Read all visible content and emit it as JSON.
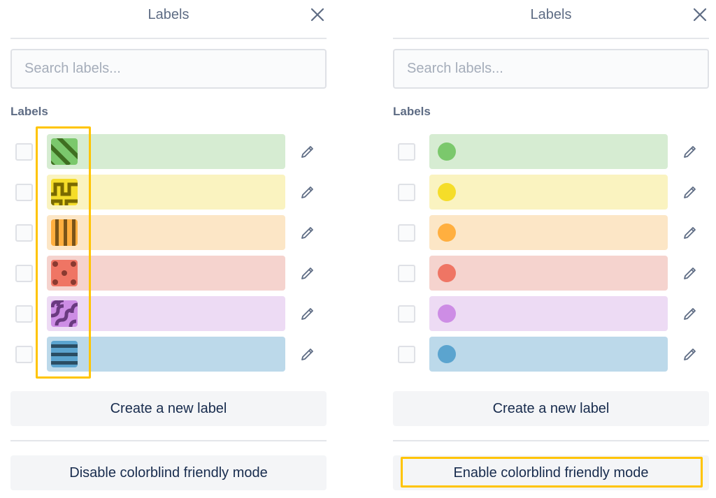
{
  "panels": [
    {
      "title": "Labels",
      "search_placeholder": "Search labels...",
      "section_heading": "Labels",
      "create_label": "Create a new label",
      "colorblind_toggle": "Disable colorblind friendly mode",
      "colorblind_mode": true,
      "highlight": "label-swatches"
    },
    {
      "title": "Labels",
      "search_placeholder": "Search labels...",
      "section_heading": "Labels",
      "create_label": "Create a new label",
      "colorblind_toggle": "Enable colorblind friendly mode",
      "colorblind_mode": false,
      "highlight": "colorblind-toggle-button"
    }
  ],
  "labels": [
    {
      "color": "green",
      "swatch": "#7bc86c",
      "bg": "#d6ecd2",
      "dark": "#3f6f21",
      "pattern": "diagonal-stripes"
    },
    {
      "color": "yellow",
      "swatch": "#f5dd29",
      "bg": "#faf3c0",
      "dark": "#7a6a00",
      "pattern": "squiggle"
    },
    {
      "color": "orange",
      "swatch": "#ffaf3f",
      "bg": "#fce6c6",
      "dark": "#7a5418",
      "pattern": "vertical-stripes"
    },
    {
      "color": "red",
      "swatch": "#ef7564",
      "bg": "#f5d3ce",
      "dark": "#8a3a30",
      "pattern": "dots"
    },
    {
      "color": "purple",
      "swatch": "#cd8de5",
      "bg": "#eddbf4",
      "dark": "#6a3a80",
      "pattern": "waves"
    },
    {
      "color": "blue",
      "swatch": "#5ba4cf",
      "bg": "#bcd9ea",
      "dark": "#2a4d63",
      "pattern": "horizontal-stripes"
    }
  ],
  "colors": {
    "highlight": "#ffc400",
    "text": "#172b4d",
    "muted": "#5e6c84"
  }
}
